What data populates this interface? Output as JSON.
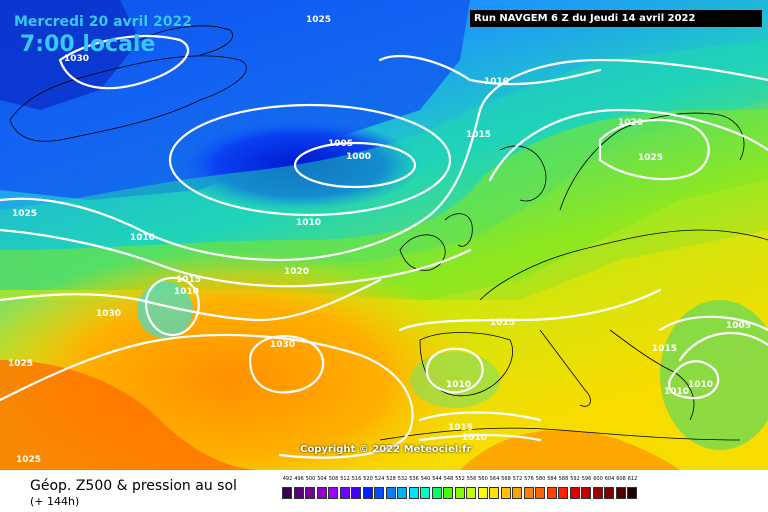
{
  "header": {
    "date": "Mercredi 20 avril 2022",
    "time": "7:00 locale",
    "run": "Run NAVGEM 6 Z du Jeudi 14 avril 2022"
  },
  "footer": {
    "title": "Géop. Z500 & pression au sol",
    "subtitle": "(+ 144h)"
  },
  "copyright": "Copyright © 2022 Meteociel.fr",
  "isobar_labels": [
    "1025",
    "1030",
    "1010",
    "1005",
    "1000",
    "1015",
    "1020",
    "1025",
    "1010",
    "1025",
    "1015",
    "1010",
    "1030",
    "1020",
    "1030",
    "1015",
    "1025",
    "1005",
    "1010",
    "1015",
    "1010",
    "1015",
    "1010",
    "1025",
    "1010",
    "1010"
  ],
  "color_scale": {
    "labels": [
      "492",
      "496",
      "500",
      "504",
      "508",
      "512",
      "516",
      "520",
      "524",
      "528",
      "532",
      "536",
      "540",
      "544",
      "548",
      "552",
      "556",
      "560",
      "564",
      "568",
      "572",
      "576",
      "580",
      "584",
      "588",
      "592",
      "596",
      "600",
      "604",
      "608",
      "612"
    ],
    "colors": [
      "#3c0050",
      "#5a0078",
      "#7a00a0",
      "#9000c8",
      "#a000ff",
      "#7000ff",
      "#4000ff",
      "#0020ff",
      "#0050ff",
      "#0080ff",
      "#00b0ff",
      "#00e0ff",
      "#00ffc0",
      "#00ff60",
      "#40ff00",
      "#80ff00",
      "#c0ff00",
      "#ffff00",
      "#ffe000",
      "#ffc000",
      "#ffa000",
      "#ff8000",
      "#ff6000",
      "#ff4000",
      "#ff2000",
      "#e00000",
      "#c00000",
      "#a00000",
      "#800000",
      "#500000",
      "#200000"
    ]
  }
}
